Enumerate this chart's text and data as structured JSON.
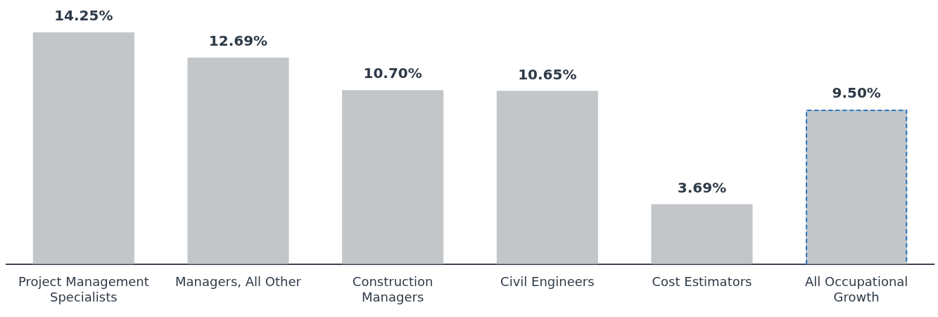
{
  "chart_data": {
    "type": "bar",
    "categories": [
      "Project Management Specialists",
      "Managers, All Other",
      "Construction Managers",
      "Civil Engineers",
      "Cost Estimators",
      "All Occupational Growth"
    ],
    "series": [
      {
        "color": "#c3c6c9",
        "values": [
          14.25,
          12.69,
          10.7,
          10.65,
          3.69,
          null
        ],
        "value_labels": [
          "14.25%",
          "12.69%",
          "10.70%",
          "10.65%",
          "3.69%",
          null
        ]
      },
      {
        "color": "#c3c6c9",
        "line_style": "dashed",
        "values": [
          null,
          null,
          null,
          null,
          null,
          9.5
        ],
        "value_labels": [
          null,
          null,
          null,
          null,
          null,
          "9.50%"
        ]
      }
    ],
    "grid": false,
    "legend": false,
    "tick_labels": "x"
  }
}
